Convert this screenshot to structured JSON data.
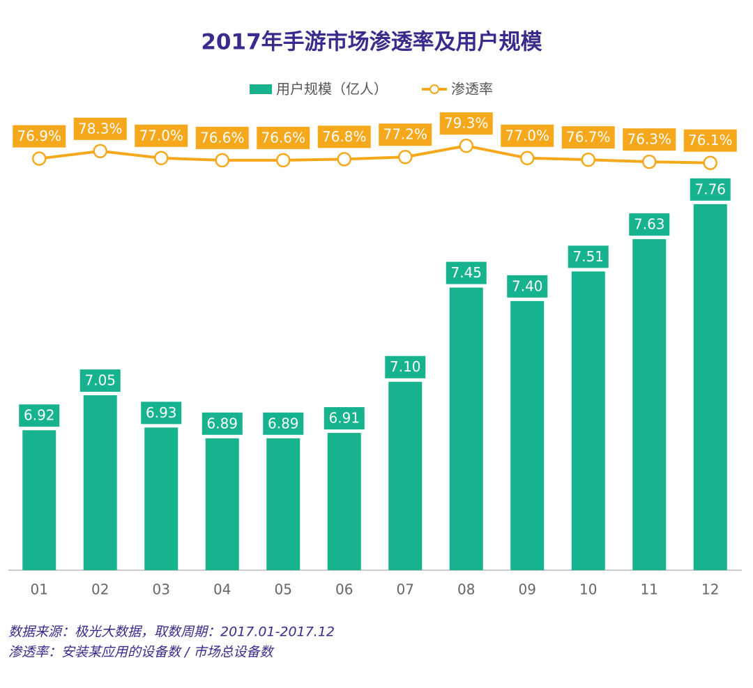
{
  "chart_data": {
    "type": "bar",
    "title": "2017年手游市场渗透率及用户规模",
    "categories": [
      "01",
      "02",
      "03",
      "04",
      "05",
      "06",
      "07",
      "08",
      "09",
      "10",
      "11",
      "12"
    ],
    "series": [
      {
        "name": "用户规模（亿人）",
        "type": "bar",
        "color": "#17b38f",
        "values": [
          6.92,
          7.05,
          6.93,
          6.89,
          6.89,
          6.91,
          7.1,
          7.45,
          7.4,
          7.51,
          7.63,
          7.76
        ],
        "value_labels": [
          "6.92",
          "7.05",
          "6.93",
          "6.89",
          "6.89",
          "6.91",
          "7.10",
          "7.45",
          "7.40",
          "7.51",
          "7.63",
          "7.76"
        ]
      },
      {
        "name": "渗透率",
        "type": "line",
        "axis": "y2",
        "color": "#f6a81c",
        "values": [
          76.9,
          78.3,
          77.0,
          76.6,
          76.6,
          76.8,
          77.2,
          79.3,
          77.0,
          76.7,
          76.3,
          76.1
        ],
        "value_labels": [
          "76.9%",
          "78.3%",
          "77.0%",
          "76.6%",
          "76.6%",
          "76.8%",
          "77.2%",
          "79.3%",
          "77.0%",
          "76.7%",
          "76.3%",
          "76.1%"
        ]
      }
    ],
    "ylim": [
      6.4,
      8.13
    ],
    "y2lim": [
      0,
      87
    ],
    "notes": [
      "数据来源：极光大数据，取数周期：2017.01-2017.12",
      "渗透率：安装某应用的设备数 / 市场总设备数"
    ]
  }
}
